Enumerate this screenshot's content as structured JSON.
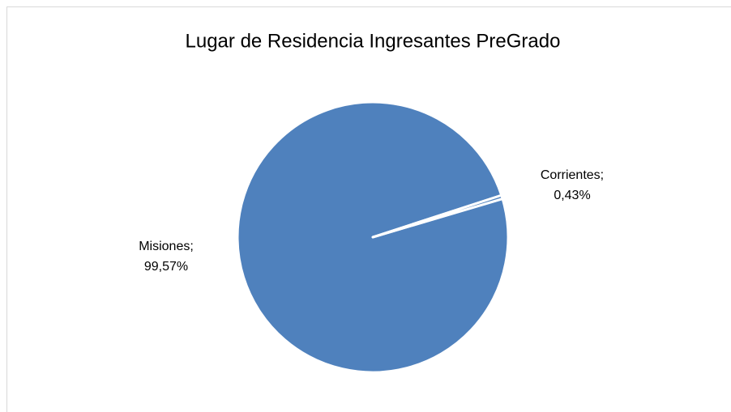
{
  "chart_data": {
    "type": "pie",
    "title": "Lugar de Residencia Ingresantes PreGrado",
    "categories": [
      "Misiones",
      "Corrientes"
    ],
    "values": [
      99.57,
      0.43
    ],
    "value_labels": [
      "99,57%",
      "0,43%"
    ],
    "label_separator": ";",
    "colors": [
      "#4f81bd",
      "#4f81bd"
    ]
  }
}
